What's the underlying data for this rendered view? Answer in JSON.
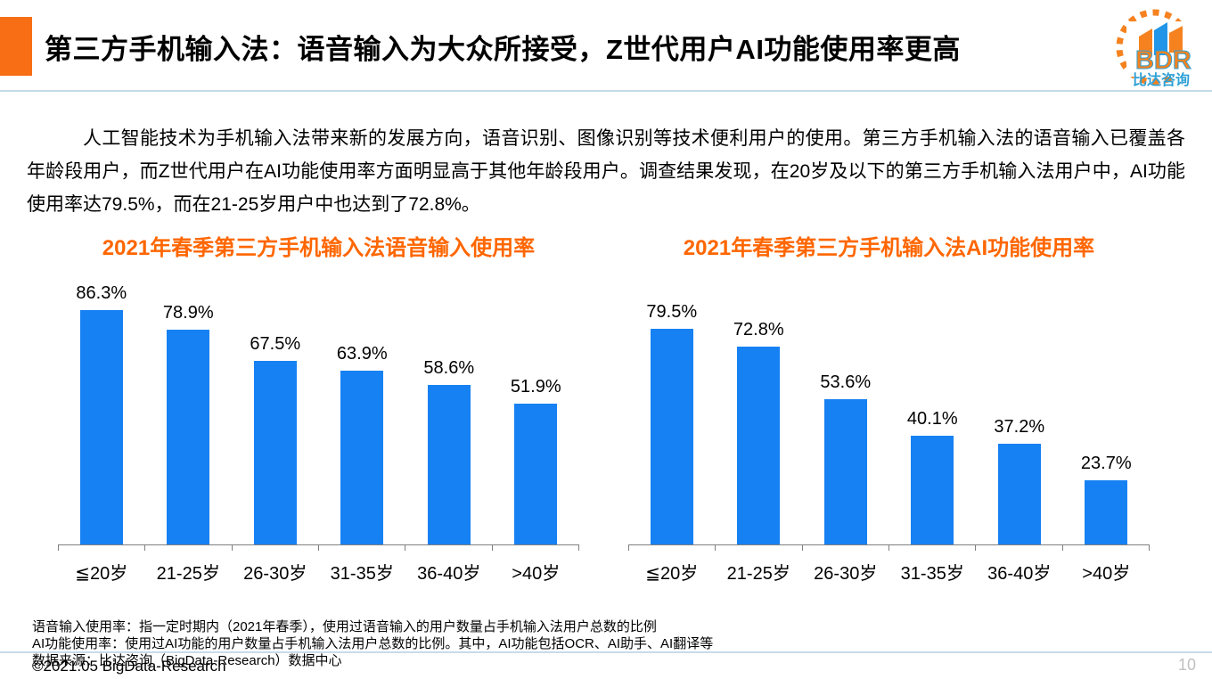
{
  "header": {
    "title": "第三方手机输入法：语音输入为大众所接受，Z世代用户AI功能使用率更高",
    "accent_color": "#F86E15",
    "divider_color": "#C3DAE9",
    "logo": {
      "text": "BDR",
      "subtext": "比达咨询",
      "orange": "#F5821F",
      "blue": "#2EA0D5"
    }
  },
  "intro": {
    "text": "人工智能技术为手机输入法带来新的发展方向，语音识别、图像识别等技术便利用户的使用。第三方手机输入法的语音输入已覆盖各年龄段用户，而Z世代用户在AI功能使用率方面明显高于其他年龄段用户。调查结果发现，在20岁及以下的第三方手机输入法用户中，AI功能使用率达79.5%，而在21-25岁用户中也达到了72.8%。"
  },
  "chart_data": [
    {
      "type": "bar",
      "title": "2021年春季第三方手机输入法语音输入使用率",
      "title_color": "#FF6600",
      "categories": [
        "≦20岁",
        "21-25岁",
        "26-30岁",
        "31-35岁",
        "36-40岁",
        ">40岁"
      ],
      "values": [
        86.3,
        78.9,
        67.5,
        63.9,
        58.6,
        51.9
      ],
      "labels": [
        "86.3%",
        "78.9%",
        "67.5%",
        "63.9%",
        "58.6%",
        "51.9%"
      ],
      "bar_color": "#1681F3",
      "xlabel": "",
      "ylabel": "",
      "ylim": [
        0,
        100
      ],
      "grid": false,
      "legend": "none"
    },
    {
      "type": "bar",
      "title": "2021年春季第三方手机输入法AI功能使用率",
      "title_color": "#FF6600",
      "categories": [
        "≦20岁",
        "21-25岁",
        "26-30岁",
        "31-35岁",
        "36-40岁",
        ">40岁"
      ],
      "values": [
        79.5,
        72.8,
        53.6,
        40.1,
        37.2,
        23.7
      ],
      "labels": [
        "79.5%",
        "72.8%",
        "53.6%",
        "40.1%",
        "37.2%",
        "23.7%"
      ],
      "bar_color": "#1681F3",
      "xlabel": "",
      "ylabel": "",
      "ylim": [
        0,
        100
      ],
      "grid": false,
      "legend": "none"
    }
  ],
  "footnotes": {
    "lines": [
      "语音输入使用率：指一定时期内（2021年春季），使用过语音输入的用户数量占手机输入法用户总数的比例",
      "AI功能使用率：使用过AI功能的用户数量占手机输入法用户总数的比例。其中，AI功能包括OCR、AI助手、AI翻译等",
      "数据来源：比达咨询（BigData-Research）数据中心"
    ]
  },
  "footer": {
    "copyright": "©2021.05 BigData-Research",
    "page_number": "10"
  }
}
